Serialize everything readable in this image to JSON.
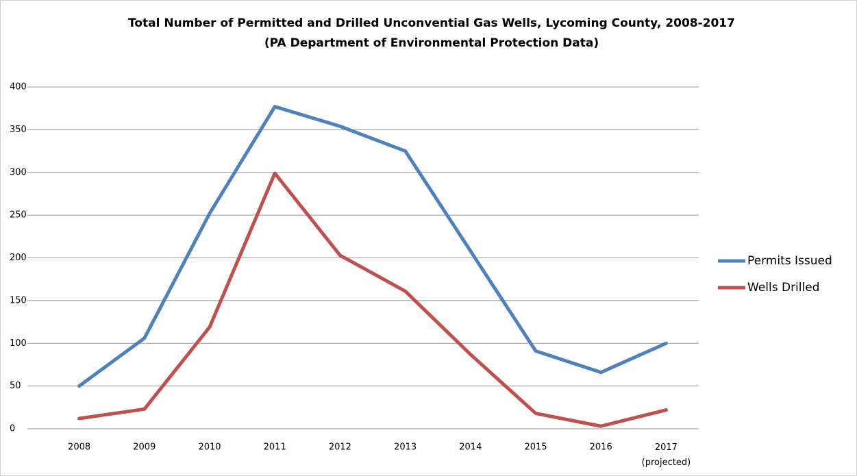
{
  "chart_data": {
    "type": "line",
    "title": "Total Number of Permitted and Drilled Unconvential Gas Wells, Lycoming County, 2008-2017",
    "subtitle": "(PA Department of Environmental Protection Data)",
    "categories": [
      "2008",
      "2009",
      "2010",
      "2011",
      "2012",
      "2013",
      "2014",
      "2015",
      "2016",
      "2017\n(projected)"
    ],
    "series": [
      {
        "name": "Permits Issued",
        "color": "#4f81bd",
        "values": [
          50,
          106,
          252,
          377,
          354,
          325,
          208,
          91,
          66,
          100
        ]
      },
      {
        "name": "Wells Drilled",
        "color": "#c0504d",
        "values": [
          12,
          23,
          119,
          299,
          203,
          161,
          87,
          18,
          3,
          22
        ]
      }
    ],
    "ylim": [
      0,
      400
    ],
    "yticks": [
      0,
      50,
      100,
      150,
      200,
      250,
      300,
      350,
      400
    ],
    "grid": true,
    "legend": "right"
  }
}
